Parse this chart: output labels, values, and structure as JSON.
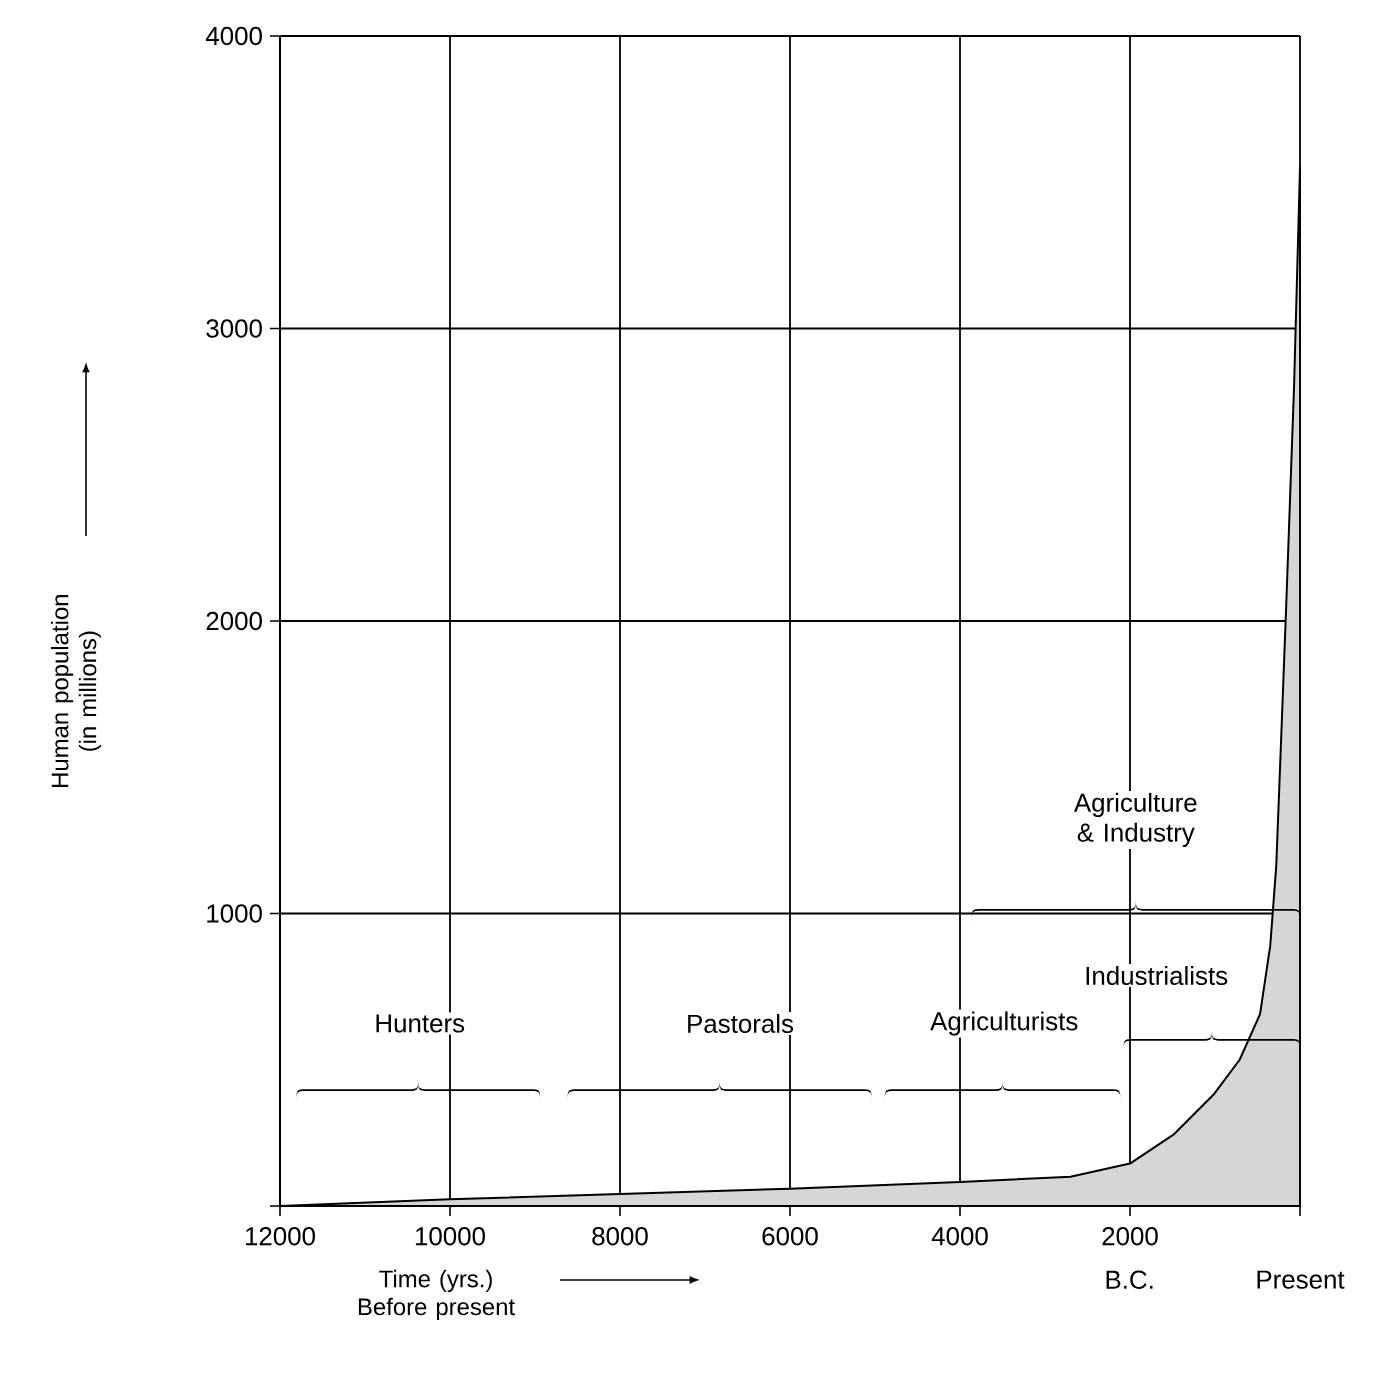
{
  "chart_data": {
    "type": "area",
    "xlabel": "Time (yrs.) Before present",
    "ylabel": "Human population (in millions)",
    "x": [
      12000,
      10000,
      8000,
      6000,
      4000,
      2700,
      2000,
      1480,
      1010,
      710,
      470,
      350,
      280,
      220,
      160,
      70,
      0
    ],
    "values": [
      0,
      23,
      41,
      59,
      82,
      100,
      145,
      246,
      383,
      500,
      656,
      890,
      1160,
      1610,
      2070,
      2800,
      3550
    ],
    "color": "#000000",
    "xlim": [
      12000,
      0
    ],
    "ylim": [
      0,
      4000
    ],
    "xticks": [
      12000,
      10000,
      8000,
      6000,
      4000,
      2000,
      {
        "value": 0,
        "label": null
      }
    ],
    "yticks": [
      {
        "value": 0,
        "label": null
      },
      1000,
      2000,
      3000,
      4000
    ],
    "grid": true,
    "annotations": [
      "Hunters",
      "Pastorals",
      "Agriculturists",
      "Industrialists",
      "Agriculture & Industry",
      "B.C.",
      "Present"
    ]
  }
}
